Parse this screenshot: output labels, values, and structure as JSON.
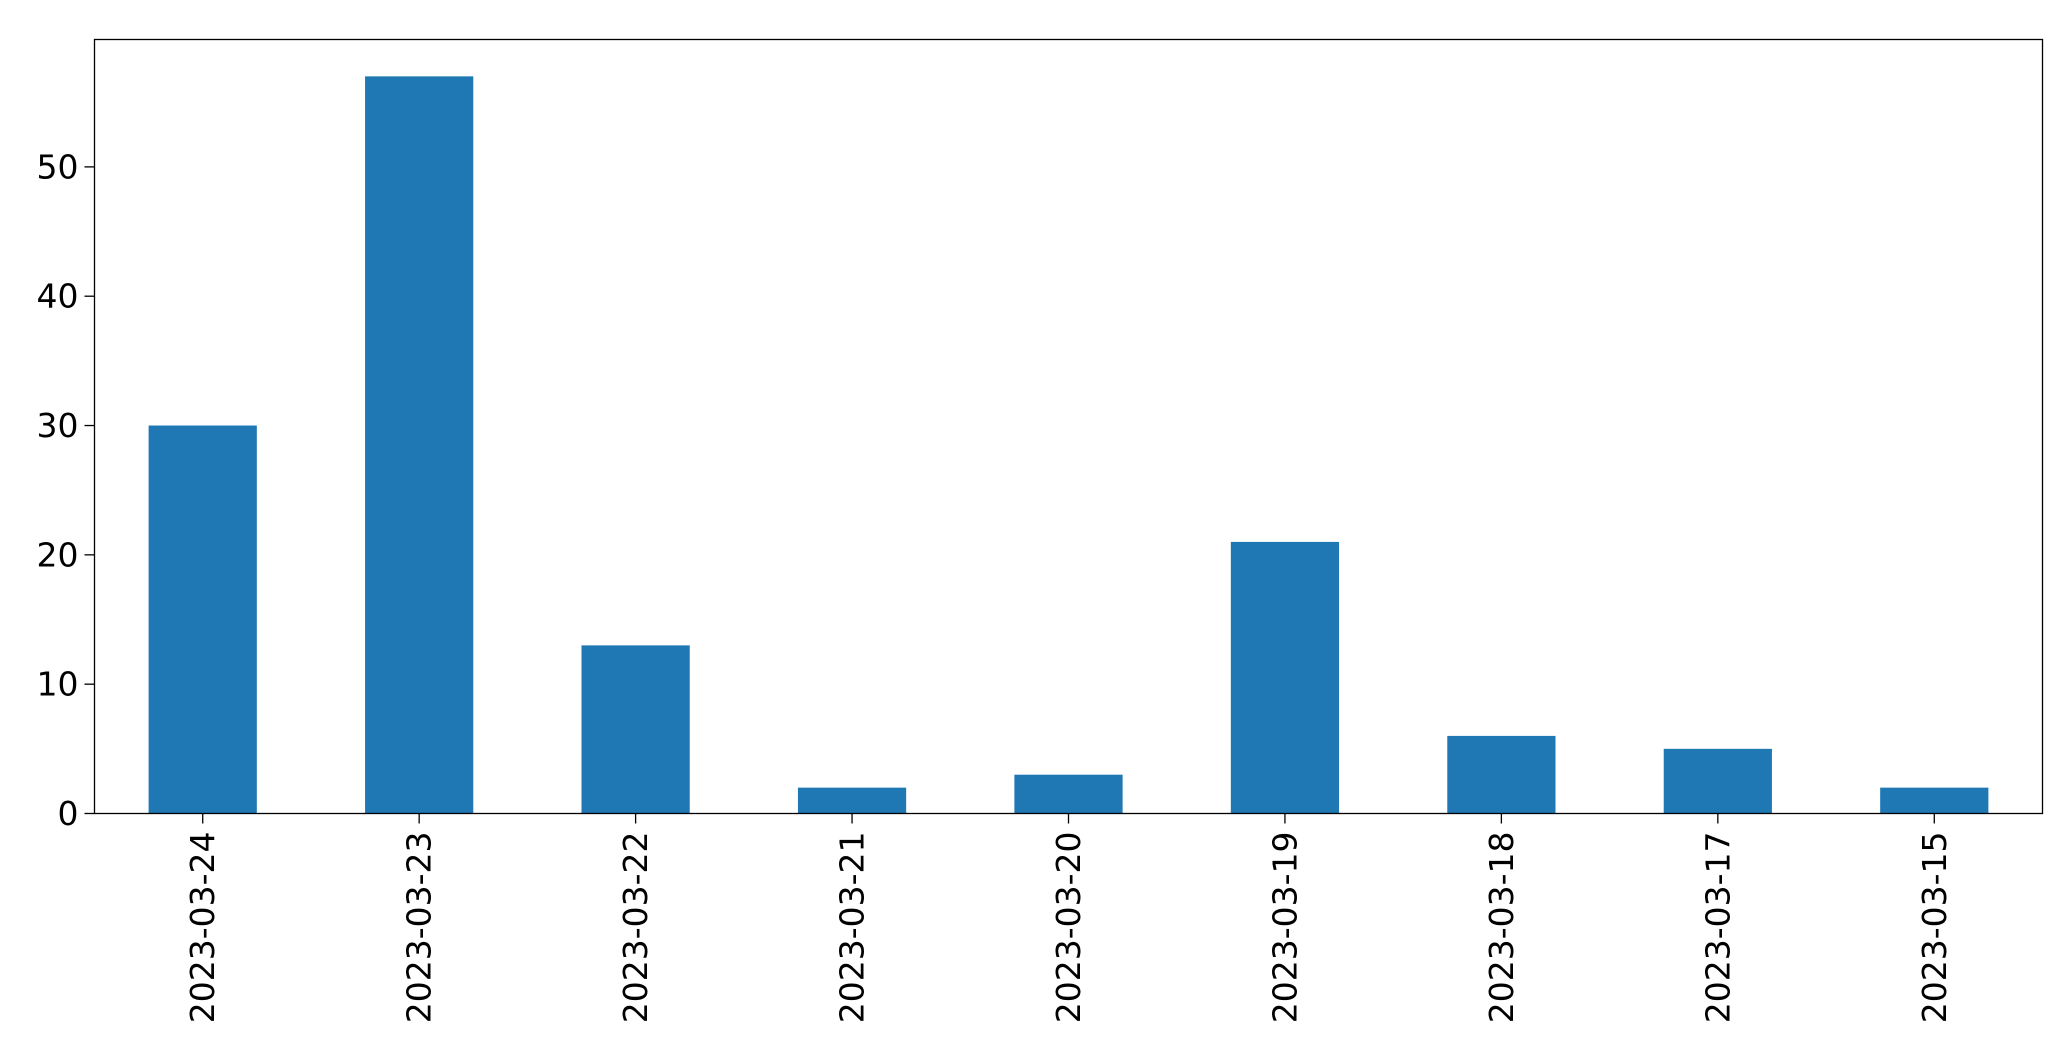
{
  "chart_data": {
    "type": "bar",
    "title": "",
    "xlabel": "",
    "ylabel": "",
    "categories": [
      "2023-03-24",
      "2023-03-23",
      "2023-03-22",
      "2023-03-21",
      "2023-03-20",
      "2023-03-19",
      "2023-03-18",
      "2023-03-17",
      "2023-03-15"
    ],
    "values": [
      30,
      57,
      13,
      2,
      3,
      21,
      6,
      5,
      2
    ],
    "ylim": [
      0,
      59.85
    ],
    "yticks": [
      0,
      10,
      20,
      30,
      40,
      50
    ],
    "bar_color": "#1f77b4",
    "grid": false,
    "legend": false
  }
}
